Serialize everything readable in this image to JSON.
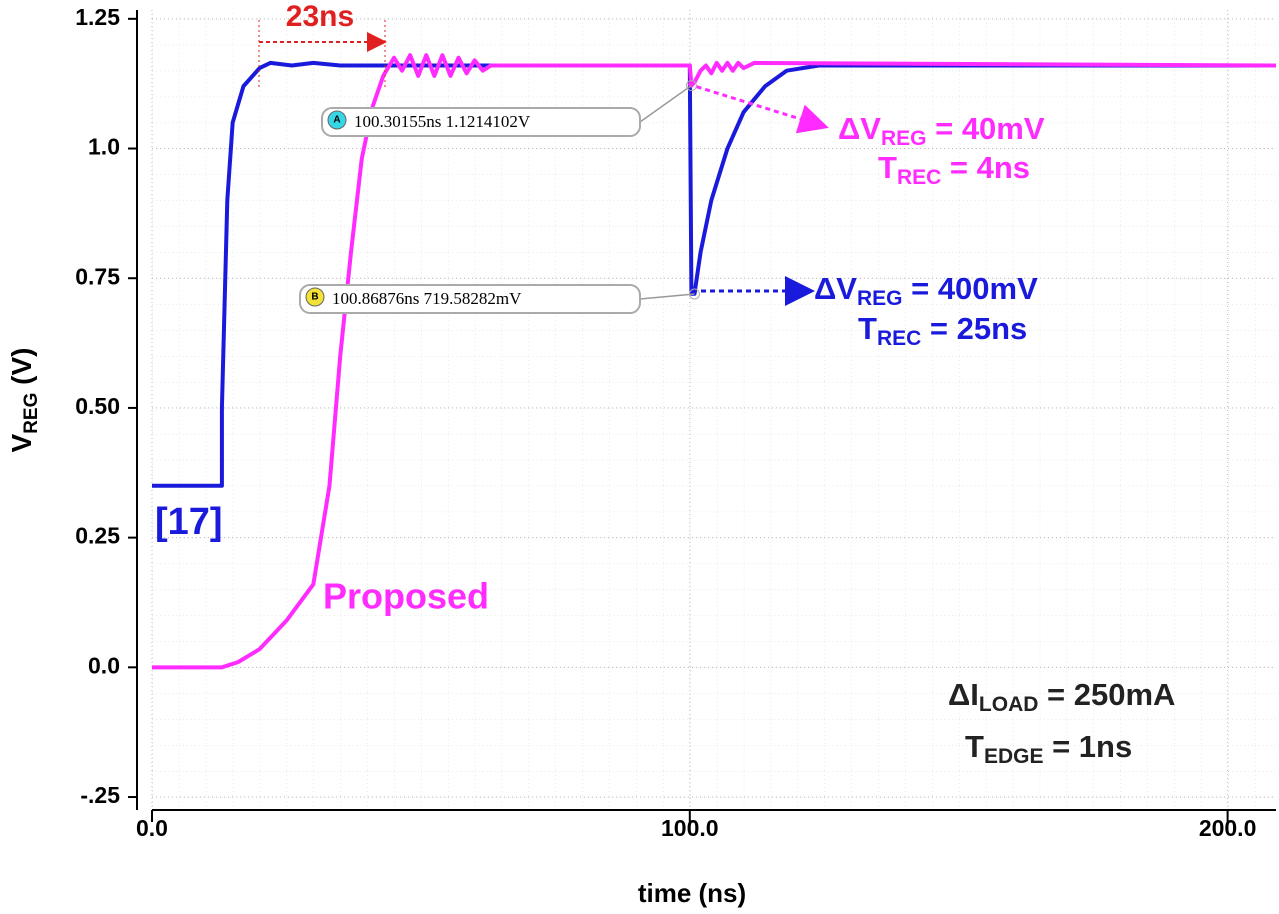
{
  "chart_data": {
    "type": "line",
    "y_label": [
      "V",
      "REG",
      " (V)"
    ],
    "x_label": "time (ns)",
    "xlim": [
      0,
      209
    ],
    "ylim": [
      -0.275,
      1.267
    ],
    "xticks": [
      {
        "value": 0,
        "label": "0.0"
      },
      {
        "value": 100,
        "label": "100.0"
      },
      {
        "value": 200,
        "label": "200.0"
      }
    ],
    "yticks": [
      1.25,
      {
        "value": 1,
        "label": "1.0"
      },
      0.75,
      {
        "value": 0.5,
        "label": "0.50"
      },
      0.25,
      {
        "value": 0,
        "label": "0.0"
      },
      {
        "value": -0.25,
        "label": "-.25"
      }
    ],
    "grid": true,
    "series": [
      {
        "name": "[17]",
        "color": "#1a1adc",
        "x": [
          0,
          13,
          13,
          14,
          15,
          17,
          20,
          22,
          26,
          30,
          35,
          100,
          100.3,
          100.87,
          102,
          104,
          107,
          110,
          114,
          118,
          124,
          209
        ],
        "values": [
          0.35,
          0.35,
          0.5,
          0.9,
          1.05,
          1.12,
          1.155,
          1.165,
          1.16,
          1.165,
          1.16,
          1.16,
          0.72,
          0.72,
          0.8,
          0.9,
          1.0,
          1.07,
          1.12,
          1.15,
          1.16,
          1.16
        ]
      },
      {
        "name": "Proposed",
        "color": "#ff2bff",
        "x": [
          0,
          13,
          16,
          20,
          25,
          30,
          33,
          35,
          37,
          39,
          41,
          43,
          45,
          46.5,
          48,
          49.5,
          51,
          52.5,
          54,
          55.5,
          57,
          58.5,
          60,
          61.5,
          63,
          100,
          100.3,
          101,
          102,
          103,
          104,
          105,
          106,
          107,
          108,
          109,
          110,
          112,
          209
        ],
        "values": [
          0,
          0,
          0.01,
          0.035,
          0.09,
          0.16,
          0.35,
          0.6,
          0.8,
          0.98,
          1.08,
          1.14,
          1.175,
          1.15,
          1.18,
          1.14,
          1.18,
          1.14,
          1.18,
          1.14,
          1.175,
          1.145,
          1.17,
          1.15,
          1.16,
          1.16,
          1.121,
          1.13,
          1.15,
          1.16,
          1.145,
          1.165,
          1.15,
          1.165,
          1.15,
          1.165,
          1.155,
          1.165,
          1.16
        ]
      }
    ],
    "markers": [
      {
        "label": "A",
        "text": "100.30155ns 1.1214102V",
        "x": 100.30155,
        "y": 1.1214102
      },
      {
        "label": "B",
        "text": "100.86876ns 719.58282mV",
        "x": 100.86876,
        "y": 0.71958282
      }
    ],
    "annotations": {
      "delay": "23ns",
      "proposed_dv": [
        "ΔV",
        "REG",
        " = 40mV"
      ],
      "proposed_trec": [
        "T",
        "REC",
        " = 4ns"
      ],
      "ref_dv": [
        "ΔV",
        "REG",
        " = 400mV"
      ],
      "ref_trec": [
        "T",
        "REC",
        " = 25ns"
      ],
      "load": [
        "ΔI",
        "LOAD",
        " = 250mA"
      ],
      "edge": [
        "T",
        "EDGE",
        " = 1ns"
      ]
    }
  }
}
